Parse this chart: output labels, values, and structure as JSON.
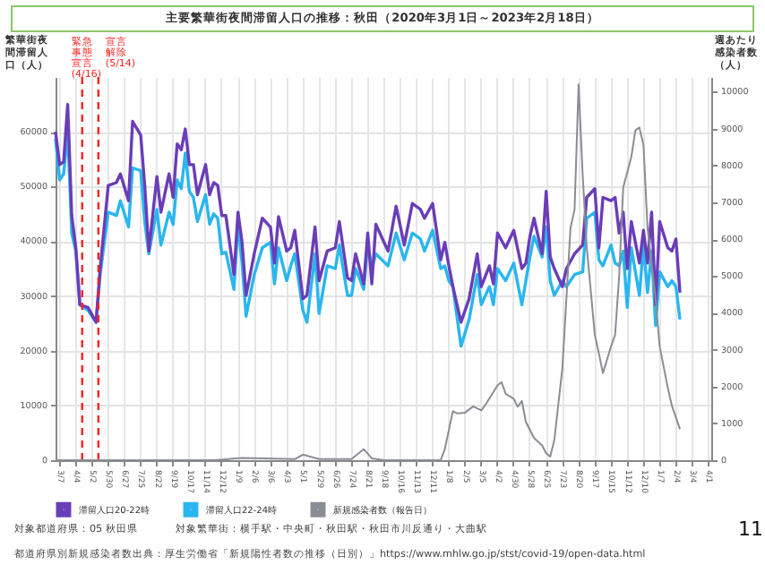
{
  "chart_data": {
    "type": "line",
    "title": "主要繁華街夜間滞留人口の推移：秋田（2020年3月1日～2023年2月18日）",
    "ylabel": "繁華街夜間滞留人口（人）",
    "y2label": "週あたり感染者数（人）",
    "annotations": [
      "対象都道府県：05 秋田県",
      "対象繁華街：横手駅・中央町・秋田駅・秋田市川反通り・大曲駅",
      "都道府県別新規感染者数出典：厚生労働省「新規陽性者数の推移（日別）」https://www.mhlw.go.jp/stst/covid-19/open-data.html",
      "11"
    ],
    "x": [
      "2020-03-01",
      "2020-03-08",
      "2020-03-15",
      "2020-03-22",
      "2020-03-29",
      "2020-04-05",
      "2020-04-12",
      "2020-04-26",
      "2020-05-10",
      "2020-05-17",
      "2020-05-31",
      "2020-06-14",
      "2020-06-21",
      "2020-07-05",
      "2020-07-12",
      "2020-07-26",
      "2020-08-02",
      "2020-08-09",
      "2020-08-23",
      "2020-08-30",
      "2020-09-13",
      "2020-09-20",
      "2020-09-27",
      "2020-10-04",
      "2020-10-11",
      "2020-10-18",
      "2020-10-25",
      "2020-11-01",
      "2020-11-15",
      "2020-11-22",
      "2020-11-29",
      "2020-12-06",
      "2020-12-13",
      "2020-12-20",
      "2021-01-03",
      "2021-01-10",
      "2021-01-17",
      "2021-01-24",
      "2021-02-07",
      "2021-02-21",
      "2021-03-07",
      "2021-03-14",
      "2021-03-21",
      "2021-04-04",
      "2021-04-11",
      "2021-04-18",
      "2021-05-02",
      "2021-05-09",
      "2021-05-23",
      "2021-05-30",
      "2021-06-13",
      "2021-06-27",
      "2021-07-04",
      "2021-07-18",
      "2021-07-25",
      "2021-08-01",
      "2021-08-15",
      "2021-08-22",
      "2021-08-29",
      "2021-09-05",
      "2021-09-26",
      "2021-10-10",
      "2021-10-24",
      "2021-11-07",
      "2021-11-21",
      "2021-11-28",
      "2021-12-12",
      "2021-12-26",
      "2022-01-02",
      "2022-01-09",
      "2022-01-16",
      "2022-01-30",
      "2022-02-13",
      "2022-02-27",
      "2022-03-06",
      "2022-03-20",
      "2022-03-27",
      "2022-04-03",
      "2022-04-17",
      "2022-05-01",
      "2022-05-15",
      "2022-05-22",
      "2022-05-29",
      "2022-06-05",
      "2022-06-19",
      "2022-06-26",
      "2022-07-03",
      "2022-07-10",
      "2022-07-24",
      "2022-07-31",
      "2022-08-14",
      "2022-08-28",
      "2022-09-04",
      "2022-09-18",
      "2022-09-25",
      "2022-10-02",
      "2022-10-16",
      "2022-10-23",
      "2022-10-30",
      "2022-11-06",
      "2022-11-13",
      "2022-11-20",
      "2022-12-04",
      "2022-12-11",
      "2022-12-18",
      "2022-12-25",
      "2023-01-01",
      "2023-01-08",
      "2023-01-22",
      "2023-01-29",
      "2023-02-05",
      "2023-02-12"
    ],
    "series": [
      {
        "name": "滞留人口20-22時",
        "color": "#6a3db8",
        "values": [
          60000,
          54000,
          54500,
          65000,
          44700,
          38800,
          28400,
          27900,
          25200,
          35000,
          50200,
          50700,
          52300,
          47400,
          61900,
          59400,
          50200,
          38200,
          51800,
          45300,
          52300,
          48000,
          57800,
          56700,
          60500,
          54000,
          54000,
          48500,
          54000,
          48500,
          50700,
          50200,
          44700,
          44700,
          33900,
          45300,
          39800,
          30100,
          37700,
          44200,
          42600,
          36000,
          44500,
          38200,
          38800,
          42000,
          29500,
          30100,
          42600,
          32800,
          38200,
          38800,
          43600,
          33300,
          32800,
          37700,
          32200,
          41500,
          32200,
          43100,
          38200,
          46400,
          39300,
          46900,
          45800,
          44200,
          46900,
          36600,
          39800,
          35500,
          31700,
          25200,
          29500,
          37700,
          31700,
          35500,
          32200,
          41500,
          38800,
          42000,
          35000,
          36000,
          40900,
          44200,
          37700,
          49100,
          37100,
          35000,
          31700,
          35000,
          37700,
          39300,
          48000,
          49600,
          38800,
          48000,
          47400,
          48000,
          41500,
          45300,
          35000,
          43600,
          36000,
          42000,
          36000,
          45300,
          28400,
          43600,
          38800,
          38200,
          40400,
          30600
        ]
      },
      {
        "name": "滞留人口22-24時",
        "color": "#29b6ef",
        "values": [
          58800,
          51200,
          52300,
          59900,
          41500,
          38200,
          28400,
          27400,
          25200,
          33900,
          45300,
          44700,
          47400,
          42600,
          53400,
          52900,
          43600,
          37700,
          45800,
          39300,
          45300,
          43100,
          51200,
          49600,
          56100,
          49100,
          48000,
          43600,
          48500,
          43100,
          45000,
          44200,
          37700,
          38000,
          31200,
          43100,
          36000,
          26300,
          33900,
          38800,
          39800,
          32200,
          38800,
          32800,
          35500,
          37700,
          27400,
          25200,
          37700,
          26800,
          35500,
          35000,
          39300,
          30100,
          30100,
          35000,
          31200,
          39300,
          35000,
          37700,
          35500,
          41500,
          36600,
          41500,
          40400,
          38200,
          42000,
          35000,
          35500,
          32800,
          31700,
          20800,
          25700,
          33900,
          28400,
          31700,
          28400,
          35000,
          32800,
          36000,
          28400,
          32800,
          37100,
          40900,
          37100,
          42600,
          32800,
          30100,
          32800,
          31700,
          33900,
          34400,
          44200,
          45300,
          36600,
          35500,
          39300,
          36000,
          35500,
          38200,
          27900,
          38800,
          30100,
          39300,
          30600,
          38200,
          24600,
          34400,
          31700,
          32800,
          31700,
          25700
        ]
      },
      {
        "name": "新規感染者数（報告日）",
        "color": "#8a8d96",
        "axis": "y2",
        "x": [
          "2020-03-01",
          "2020-11-29",
          "2021-01-17",
          "2021-04-18",
          "2021-05-02",
          "2021-05-30",
          "2021-07-25",
          "2021-08-15",
          "2021-08-29",
          "2021-09-19",
          "2021-12-26",
          "2022-01-02",
          "2022-01-16",
          "2022-01-23",
          "2022-02-06",
          "2022-02-20",
          "2022-03-06",
          "2022-03-13",
          "2022-04-03",
          "2022-04-10",
          "2022-04-17",
          "2022-05-01",
          "2022-05-08",
          "2022-05-15",
          "2022-05-22",
          "2022-06-05",
          "2022-06-19",
          "2022-06-26",
          "2022-07-03",
          "2022-07-10",
          "2022-07-24",
          "2022-08-07",
          "2022-08-14",
          "2022-08-21",
          "2022-08-28",
          "2022-09-04",
          "2022-09-18",
          "2022-09-25",
          "2022-10-02",
          "2022-10-16",
          "2022-10-23",
          "2022-10-30",
          "2022-11-06",
          "2022-11-20",
          "2022-11-27",
          "2022-12-04",
          "2022-12-11",
          "2022-12-18",
          "2023-01-01",
          "2023-01-08",
          "2023-01-22",
          "2023-01-29",
          "2023-02-12"
        ],
        "values": [
          0,
          0,
          60,
          30,
          150,
          30,
          30,
          300,
          50,
          0,
          0,
          300,
          1330,
          1270,
          1290,
          1460,
          1350,
          1500,
          2030,
          2120,
          1800,
          1670,
          1450,
          1610,
          1040,
          600,
          400,
          190,
          100,
          540,
          2500,
          6300,
          6800,
          10200,
          7750,
          5800,
          3400,
          2900,
          2360,
          3090,
          3400,
          5000,
          7400,
          8230,
          8950,
          9030,
          8550,
          6300,
          4370,
          3090,
          1960,
          1480,
          840
        ]
      }
    ],
    "xlim": [
      "2020-03-01",
      "2023-04-07"
    ],
    "xticks": [
      {
        "value": "2020-03-07",
        "label": "3/7"
      },
      {
        "value": "2020-04-04",
        "label": "4/4"
      },
      {
        "value": "2020-05-02",
        "label": "5/2"
      },
      {
        "value": "2020-05-30",
        "label": "5/30"
      },
      {
        "value": "2020-06-27",
        "label": "6/27"
      },
      {
        "value": "2020-07-25",
        "label": "7/25"
      },
      {
        "value": "2020-08-22",
        "label": "8/22"
      },
      {
        "value": "2020-09-19",
        "label": "9/19"
      },
      {
        "value": "2020-10-17",
        "label": "10/17"
      },
      {
        "value": "2020-11-14",
        "label": "11/14"
      },
      {
        "value": "2020-12-12",
        "label": "12/12"
      },
      {
        "value": "2021-01-09",
        "label": "1/9"
      },
      {
        "value": "2021-02-06",
        "label": "2/6"
      },
      {
        "value": "2021-03-06",
        "label": "3/6"
      },
      {
        "value": "2021-04-03",
        "label": "4/3"
      },
      {
        "value": "2021-05-01",
        "label": "5/1"
      },
      {
        "value": "2021-05-29",
        "label": "5/29"
      },
      {
        "value": "2021-06-26",
        "label": "6/26"
      },
      {
        "value": "2021-07-24",
        "label": "7/24"
      },
      {
        "value": "2021-08-21",
        "label": "8/21"
      },
      {
        "value": "2021-09-18",
        "label": "9/18"
      },
      {
        "value": "2021-10-16",
        "label": "10/16"
      },
      {
        "value": "2021-11-13",
        "label": "11/13"
      },
      {
        "value": "2021-12-11",
        "label": "12/11"
      },
      {
        "value": "2022-01-08",
        "label": "1/8"
      },
      {
        "value": "2022-02-05",
        "label": "2/5"
      },
      {
        "value": "2022-03-05",
        "label": "3/5"
      },
      {
        "value": "2022-04-02",
        "label": "4/2"
      },
      {
        "value": "2022-04-30",
        "label": "4/30"
      },
      {
        "value": "2022-05-28",
        "label": "5/28"
      },
      {
        "value": "2022-06-25",
        "label": "6/25"
      },
      {
        "value": "2022-07-23",
        "label": "7/23"
      },
      {
        "value": "2022-08-20",
        "label": "8/20"
      },
      {
        "value": "2022-09-17",
        "label": "9/17"
      },
      {
        "value": "2022-10-15",
        "label": "10/15"
      },
      {
        "value": "2022-11-12",
        "label": "11/12"
      },
      {
        "value": "2022-12-10",
        "label": "12/10"
      },
      {
        "value": "2023-01-07",
        "label": "1/7"
      },
      {
        "value": "2023-02-04",
        "label": "2/4"
      },
      {
        "value": "2023-03-04",
        "label": "3/4"
      },
      {
        "value": "2023-04-01",
        "label": "4/1"
      }
    ],
    "ylim": [
      0,
      70000
    ],
    "yticks": [
      0,
      10000,
      20000,
      30000,
      40000,
      50000,
      60000
    ],
    "y2lim": [
      0,
      10400
    ],
    "y2ticks": [
      0,
      1000,
      2000,
      3000,
      4000,
      5000,
      6000,
      7000,
      8000,
      9000,
      10000
    ],
    "ref_lines": [
      {
        "axis": "x",
        "value": "2020-04-16",
        "label": "緊急事態宣言(4/16)",
        "color": "#ff2020",
        "line_style": "dashed"
      },
      {
        "axis": "x",
        "value": "2020-05-14",
        "label": "宣言解除(5/14)",
        "color": "#ff2020",
        "line_style": "dashed"
      }
    ],
    "grid": true,
    "legend": "bottom",
    "marker": "none",
    "line_style": "solid"
  }
}
